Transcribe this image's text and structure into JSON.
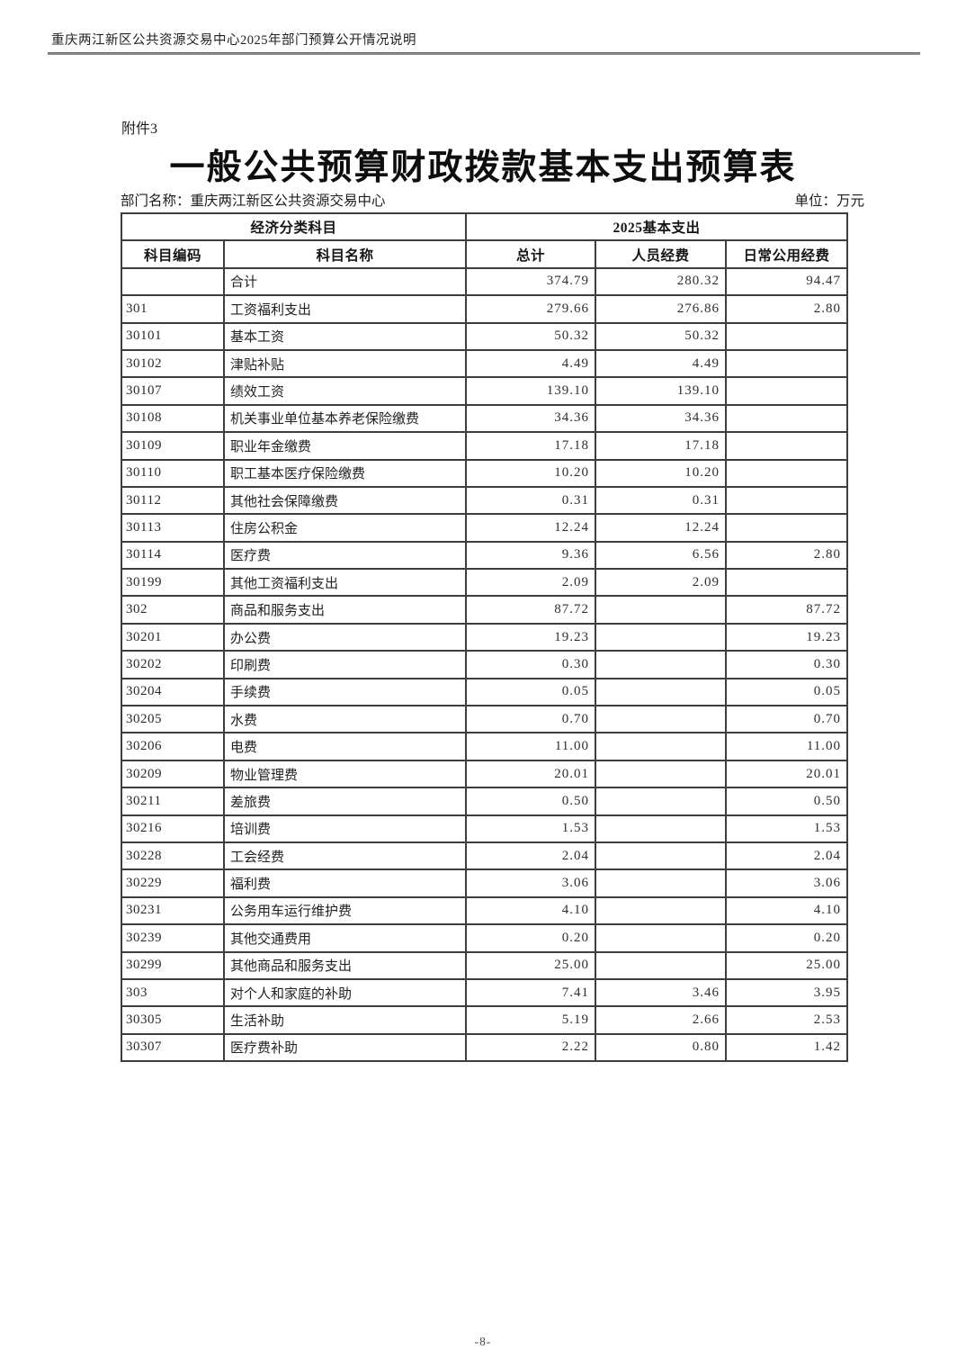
{
  "page": {
    "header": "重庆两江新区公共资源交易中心2025年部门预算公开情况说明",
    "attachment": "附件3",
    "title": "一般公共预算财政拨款基本支出预算表",
    "department_label": "部门名称：重庆两江新区公共资源交易中心",
    "unit_label": "单位：万元",
    "page_number": "-8-"
  },
  "table": {
    "header_group_left": "经济分类科目",
    "header_group_right": "2025基本支出",
    "columns": [
      "科目编码",
      "科目名称",
      "总计",
      "人员经费",
      "日常公用经费"
    ],
    "rows": [
      [
        "",
        "合计",
        "374.79",
        "280.32",
        "94.47"
      ],
      [
        "301",
        "工资福利支出",
        "279.66",
        "276.86",
        "2.80"
      ],
      [
        "30101",
        "基本工资",
        "50.32",
        "50.32",
        ""
      ],
      [
        "30102",
        "津贴补贴",
        "4.49",
        "4.49",
        ""
      ],
      [
        "30107",
        "绩效工资",
        "139.10",
        "139.10",
        ""
      ],
      [
        "30108",
        "机关事业单位基本养老保险缴费",
        "34.36",
        "34.36",
        ""
      ],
      [
        "30109",
        "职业年金缴费",
        "17.18",
        "17.18",
        ""
      ],
      [
        "30110",
        "职工基本医疗保险缴费",
        "10.20",
        "10.20",
        ""
      ],
      [
        "30112",
        "其他社会保障缴费",
        "0.31",
        "0.31",
        ""
      ],
      [
        "30113",
        "住房公积金",
        "12.24",
        "12.24",
        ""
      ],
      [
        "30114",
        "医疗费",
        "9.36",
        "6.56",
        "2.80"
      ],
      [
        "30199",
        "其他工资福利支出",
        "2.09",
        "2.09",
        ""
      ],
      [
        "302",
        "商品和服务支出",
        "87.72",
        "",
        "87.72"
      ],
      [
        "30201",
        "办公费",
        "19.23",
        "",
        "19.23"
      ],
      [
        "30202",
        "印刷费",
        "0.30",
        "",
        "0.30"
      ],
      [
        "30204",
        "手续费",
        "0.05",
        "",
        "0.05"
      ],
      [
        "30205",
        "水费",
        "0.70",
        "",
        "0.70"
      ],
      [
        "30206",
        "电费",
        "11.00",
        "",
        "11.00"
      ],
      [
        "30209",
        "物业管理费",
        "20.01",
        "",
        "20.01"
      ],
      [
        "30211",
        "差旅费",
        "0.50",
        "",
        "0.50"
      ],
      [
        "30216",
        "培训费",
        "1.53",
        "",
        "1.53"
      ],
      [
        "30228",
        "工会经费",
        "2.04",
        "",
        "2.04"
      ],
      [
        "30229",
        "福利费",
        "3.06",
        "",
        "3.06"
      ],
      [
        "30231",
        "公务用车运行维护费",
        "4.10",
        "",
        "4.10"
      ],
      [
        "30239",
        "其他交通费用",
        "0.20",
        "",
        "0.20"
      ],
      [
        "30299",
        "其他商品和服务支出",
        "25.00",
        "",
        "25.00"
      ],
      [
        "303",
        "对个人和家庭的补助",
        "7.41",
        "3.46",
        "3.95"
      ],
      [
        "30305",
        "生活补助",
        "5.19",
        "2.66",
        "2.53"
      ],
      [
        "30307",
        "医疗费补助",
        "2.22",
        "0.80",
        "1.42"
      ]
    ]
  }
}
